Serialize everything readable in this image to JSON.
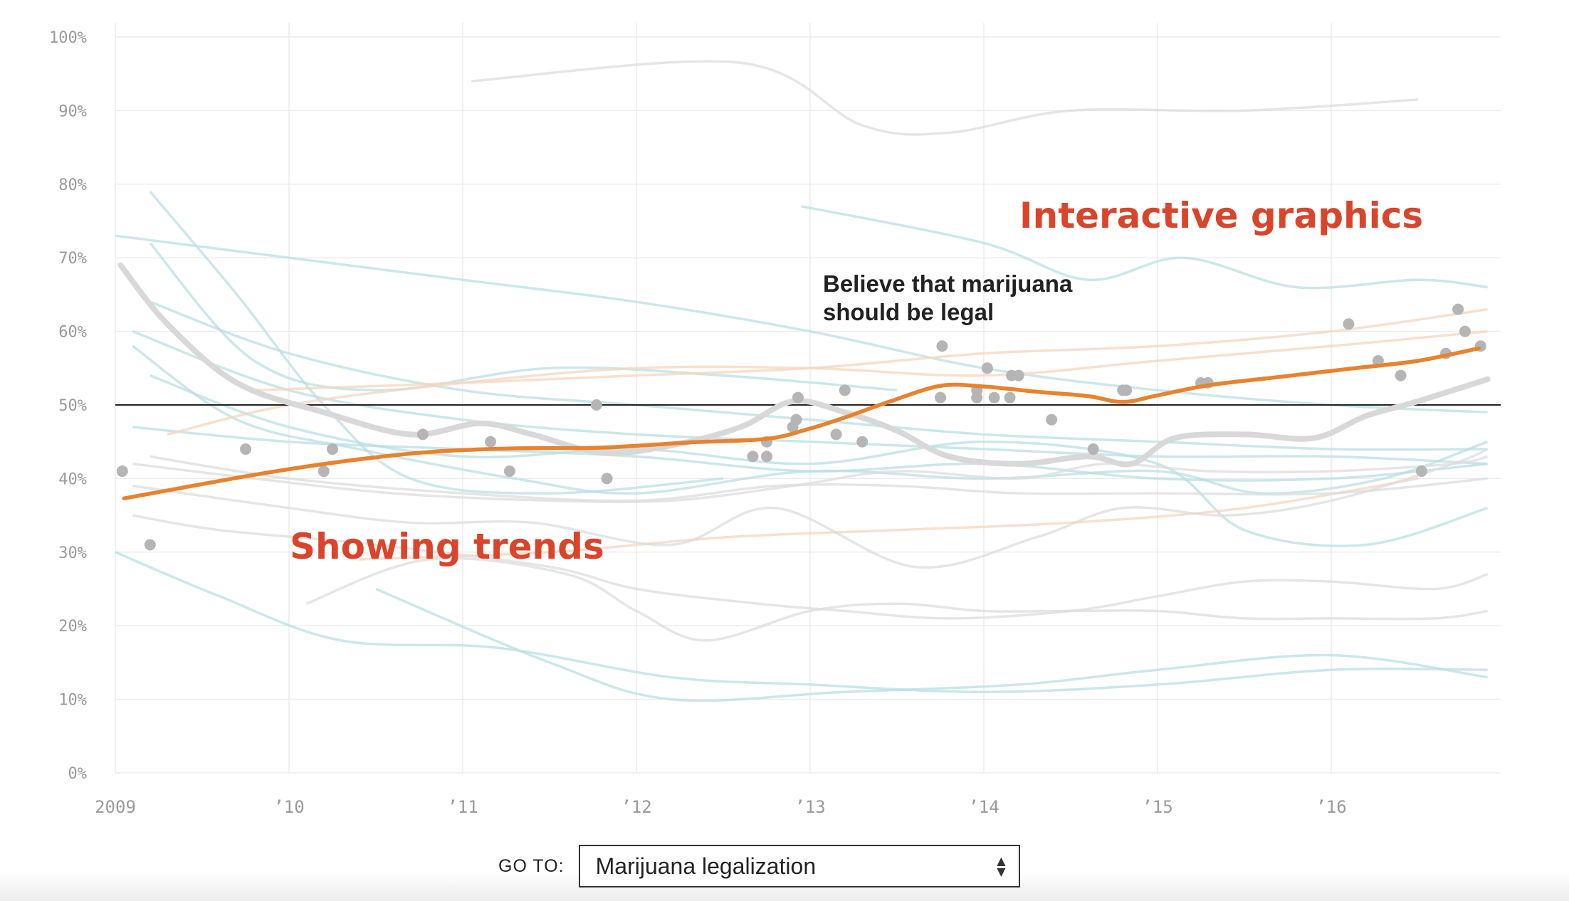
{
  "chart_data": {
    "type": "line",
    "title": "",
    "xlabel": "",
    "ylabel": "",
    "ylim": [
      0,
      100
    ],
    "xlim": [
      2009,
      2017
    ],
    "y_ticks": [
      "0%",
      "10%",
      "20%",
      "30%",
      "40%",
      "50%",
      "60%",
      "70%",
      "80%",
      "90%",
      "100%"
    ],
    "x_ticks": [
      {
        "value": 2009,
        "label": "2009"
      },
      {
        "value": 2010,
        "label": "’10"
      },
      {
        "value": 2011,
        "label": "’11"
      },
      {
        "value": 2012,
        "label": "’12"
      },
      {
        "value": 2013,
        "label": "’13"
      },
      {
        "value": 2014,
        "label": "’14"
      },
      {
        "value": 2015,
        "label": "’15"
      },
      {
        "value": 2016,
        "label": "’16"
      }
    ],
    "grid": true,
    "reference_line": 50,
    "annotations": {
      "interactive": "Interactive graphics",
      "trends": "Showing trends",
      "series_label_1": "Believe that marijuana",
      "series_label_2": "should be legal"
    },
    "colors": {
      "highlight": "#e8822e",
      "points": "#b5b5b5",
      "gray_trend": "#d8d8d8",
      "annotation": "#d9452b",
      "background_blue": "#b9dfe3",
      "background_orange": "#f6d5bd",
      "background_gray": "#dcdcdc"
    },
    "highlight_series": {
      "x": [
        2009.05,
        2009.8,
        2010.3,
        2010.8,
        2011.3,
        2011.8,
        2012.3,
        2012.75,
        2013.0,
        2013.2,
        2013.45,
        2013.75,
        2014.0,
        2014.3,
        2014.6,
        2014.8,
        2015.0,
        2015.3,
        2015.7,
        2016.1,
        2016.5,
        2016.85
      ],
      "y": [
        37.3,
        40.5,
        42.3,
        43.6,
        44.1,
        44.2,
        44.9,
        45.4,
        46.8,
        48.3,
        50.4,
        52.6,
        52.5,
        51.8,
        51.2,
        50.4,
        51.3,
        52.7,
        53.8,
        54.9,
        56.0,
        57.7
      ]
    },
    "gray_trend": {
      "x": [
        2009.03,
        2009.3,
        2009.7,
        2010.2,
        2010.7,
        2011.1,
        2011.4,
        2011.8,
        2012.2,
        2012.6,
        2012.9,
        2013.2,
        2013.5,
        2013.8,
        2014.2,
        2014.6,
        2014.85,
        2015.1,
        2015.5,
        2015.9,
        2016.2,
        2016.5,
        2016.9
      ],
      "y": [
        69,
        61,
        53,
        49,
        46,
        47.5,
        46,
        43.5,
        44.5,
        47,
        50.5,
        49,
        46.5,
        43,
        42,
        43,
        42,
        45.5,
        46,
        45.5,
        48.5,
        50.5,
        53.5
      ]
    },
    "points": [
      {
        "x": 2009.04,
        "y": 41
      },
      {
        "x": 2009.2,
        "y": 31
      },
      {
        "x": 2009.75,
        "y": 44
      },
      {
        "x": 2010.2,
        "y": 41
      },
      {
        "x": 2010.25,
        "y": 44
      },
      {
        "x": 2010.77,
        "y": 46
      },
      {
        "x": 2011.16,
        "y": 45
      },
      {
        "x": 2011.27,
        "y": 41
      },
      {
        "x": 2011.77,
        "y": 50
      },
      {
        "x": 2011.83,
        "y": 40
      },
      {
        "x": 2012.67,
        "y": 43
      },
      {
        "x": 2012.75,
        "y": 43
      },
      {
        "x": 2012.75,
        "y": 45
      },
      {
        "x": 2012.9,
        "y": 47
      },
      {
        "x": 2012.92,
        "y": 48
      },
      {
        "x": 2012.93,
        "y": 51
      },
      {
        "x": 2013.15,
        "y": 46
      },
      {
        "x": 2013.2,
        "y": 52
      },
      {
        "x": 2013.3,
        "y": 45
      },
      {
        "x": 2013.75,
        "y": 51
      },
      {
        "x": 2013.76,
        "y": 58
      },
      {
        "x": 2013.96,
        "y": 51
      },
      {
        "x": 2013.96,
        "y": 52
      },
      {
        "x": 2014.02,
        "y": 55
      },
      {
        "x": 2014.06,
        "y": 51
      },
      {
        "x": 2014.15,
        "y": 51
      },
      {
        "x": 2014.16,
        "y": 54
      },
      {
        "x": 2014.2,
        "y": 54
      },
      {
        "x": 2014.39,
        "y": 48
      },
      {
        "x": 2014.63,
        "y": 44
      },
      {
        "x": 2014.8,
        "y": 52
      },
      {
        "x": 2014.82,
        "y": 52
      },
      {
        "x": 2015.25,
        "y": 53
      },
      {
        "x": 2015.29,
        "y": 53
      },
      {
        "x": 2016.1,
        "y": 61
      },
      {
        "x": 2016.27,
        "y": 56
      },
      {
        "x": 2016.4,
        "y": 54
      },
      {
        "x": 2016.52,
        "y": 41
      },
      {
        "x": 2016.66,
        "y": 57
      },
      {
        "x": 2016.73,
        "y": 63
      },
      {
        "x": 2016.77,
        "y": 60
      },
      {
        "x": 2016.86,
        "y": 58
      }
    ],
    "background_series": [
      {
        "color": "gray",
        "x": [
          2011.05,
          2012.6,
          2013.3,
          2013.8,
          2014.5,
          2015.5,
          2016.5
        ],
        "y": [
          94,
          96.5,
          88,
          87,
          90,
          90,
          91.5
        ]
      },
      {
        "color": "blue",
        "x": [
          2012.95,
          2014,
          2014.6,
          2015.15,
          2015.8,
          2016.5,
          2016.9
        ],
        "y": [
          77,
          72,
          67,
          70,
          66,
          67,
          66
        ]
      },
      {
        "color": "blue",
        "x": [
          2009,
          2010,
          2011,
          2012,
          2013,
          2014,
          2015,
          2016,
          2016.9
        ],
        "y": [
          73,
          70,
          67,
          64,
          60,
          55,
          52,
          50,
          49
        ]
      },
      {
        "color": "blue",
        "x": [
          2009.2,
          2009.7,
          2010.2,
          2010.7,
          2011.5,
          2012.5
        ],
        "y": [
          79,
          65,
          50,
          40,
          38,
          40
        ]
      },
      {
        "color": "blue",
        "x": [
          2009.2,
          2009.8,
          2010.5,
          2011.5,
          2012.5,
          2013.5
        ],
        "y": [
          72,
          56,
          52,
          55,
          54,
          52
        ]
      },
      {
        "color": "blue",
        "x": [
          2009.1,
          2010,
          2011,
          2012,
          2013,
          2014,
          2015,
          2016,
          2016.9
        ],
        "y": [
          60,
          52,
          48,
          46,
          45,
          44,
          43,
          43,
          42
        ]
      },
      {
        "color": "blue",
        "x": [
          2009.1,
          2009.7,
          2010.4,
          2011.3,
          2012,
          2013,
          2014,
          2015,
          2015.6,
          2016.3,
          2016.9
        ],
        "y": [
          58,
          48,
          44,
          40,
          38,
          41,
          40,
          41,
          38,
          40,
          45
        ]
      },
      {
        "color": "blue",
        "x": [
          2009.2,
          2010,
          2011,
          2012,
          2013,
          2014,
          2015,
          2015.5,
          2016.2,
          2016.9
        ],
        "y": [
          54,
          47,
          43,
          44,
          42,
          45,
          42,
          33,
          31,
          36
        ]
      },
      {
        "color": "blue",
        "x": [
          2009.1,
          2010,
          2011,
          2012,
          2013,
          2014,
          2015,
          2016,
          2016.9
        ],
        "y": [
          47,
          45,
          44,
          43,
          41,
          42,
          40,
          40,
          42
        ]
      },
      {
        "color": "blue",
        "x": [
          2009,
          2009.6,
          2010.3,
          2011.2,
          2012.2,
          2013,
          2014,
          2015,
          2016,
          2016.9
        ],
        "y": [
          30,
          24,
          18,
          17,
          13,
          12,
          11,
          12,
          14,
          14
        ]
      },
      {
        "color": "blue",
        "x": [
          2010.5,
          2011.5,
          2012.2,
          2013.2,
          2014.2,
          2015,
          2016,
          2016.9
        ],
        "y": [
          25,
          15,
          10,
          11,
          12,
          14,
          16,
          13
        ]
      },
      {
        "color": "blue",
        "x": [
          2009.2,
          2010,
          2011,
          2012,
          2013,
          2014,
          2015,
          2016,
          2016.9
        ],
        "y": [
          64,
          57,
          52,
          50,
          48,
          46,
          45,
          44,
          44
        ]
      },
      {
        "color": "orange",
        "x": [
          2009.3,
          2010,
          2011,
          2012,
          2013,
          2014,
          2015,
          2016,
          2016.9
        ],
        "y": [
          46,
          50,
          53,
          55,
          55,
          54,
          56,
          58,
          60
        ]
      },
      {
        "color": "orange",
        "x": [
          2010.4,
          2011.5,
          2012.5,
          2013.5,
          2014.5,
          2015.5,
          2016.5
        ],
        "y": [
          29,
          30,
          32,
          33,
          34,
          36,
          40
        ]
      },
      {
        "color": "orange",
        "x": [
          2009.8,
          2011,
          2012,
          2013,
          2014,
          2015,
          2016,
          2016.9
        ],
        "y": [
          52,
          53,
          54,
          55,
          57,
          58,
          60,
          63
        ]
      },
      {
        "color": "gray",
        "x": [
          2009.1,
          2009.6,
          2010.5,
          2011.5,
          2012,
          2012.7,
          2013.2,
          2013.8,
          2014.5,
          2015,
          2015.5,
          2016,
          2016.6,
          2016.9
        ],
        "y": [
          35,
          33,
          31,
          28,
          25,
          23,
          22,
          21,
          22,
          24,
          26,
          26,
          25,
          27
        ]
      },
      {
        "color": "gray",
        "x": [
          2010.1,
          2010.8,
          2011.6,
          2012,
          2012.4,
          2013,
          2013.5,
          2014,
          2014.5,
          2015,
          2015.5,
          2016,
          2016.6,
          2016.9
        ],
        "y": [
          23,
          29,
          27,
          22,
          18,
          22,
          23,
          22,
          22,
          22,
          21,
          21,
          21,
          22
        ]
      },
      {
        "color": "gray",
        "x": [
          2009.1,
          2009.8,
          2010.6,
          2011.5,
          2012.2,
          2012.9,
          2013.5,
          2014.2,
          2014.7,
          2015.3,
          2016,
          2016.7,
          2016.9
        ],
        "y": [
          42,
          40,
          38,
          37,
          37,
          39,
          41,
          40,
          42,
          41,
          41,
          42,
          43
        ]
      },
      {
        "color": "gray",
        "x": [
          2009.1,
          2010,
          2010.7,
          2011.4,
          2012.2,
          2012.8,
          2013.6,
          2014.3,
          2014.8,
          2015.4,
          2016,
          2016.7,
          2016.9
        ],
        "y": [
          39,
          36,
          34,
          34,
          31,
          36,
          28,
          32,
          36,
          35,
          37,
          42,
          44
        ]
      },
      {
        "color": "gray",
        "x": [
          2009.2,
          2010,
          2011,
          2012,
          2012.8,
          2013.5,
          2014.2,
          2015,
          2016,
          2016.9
        ],
        "y": [
          43,
          40,
          38,
          37,
          39,
          39,
          38,
          38,
          38,
          40
        ]
      }
    ]
  },
  "controls": {
    "goto_label": "GO TO:",
    "goto_value": "Marijuana legalization"
  }
}
